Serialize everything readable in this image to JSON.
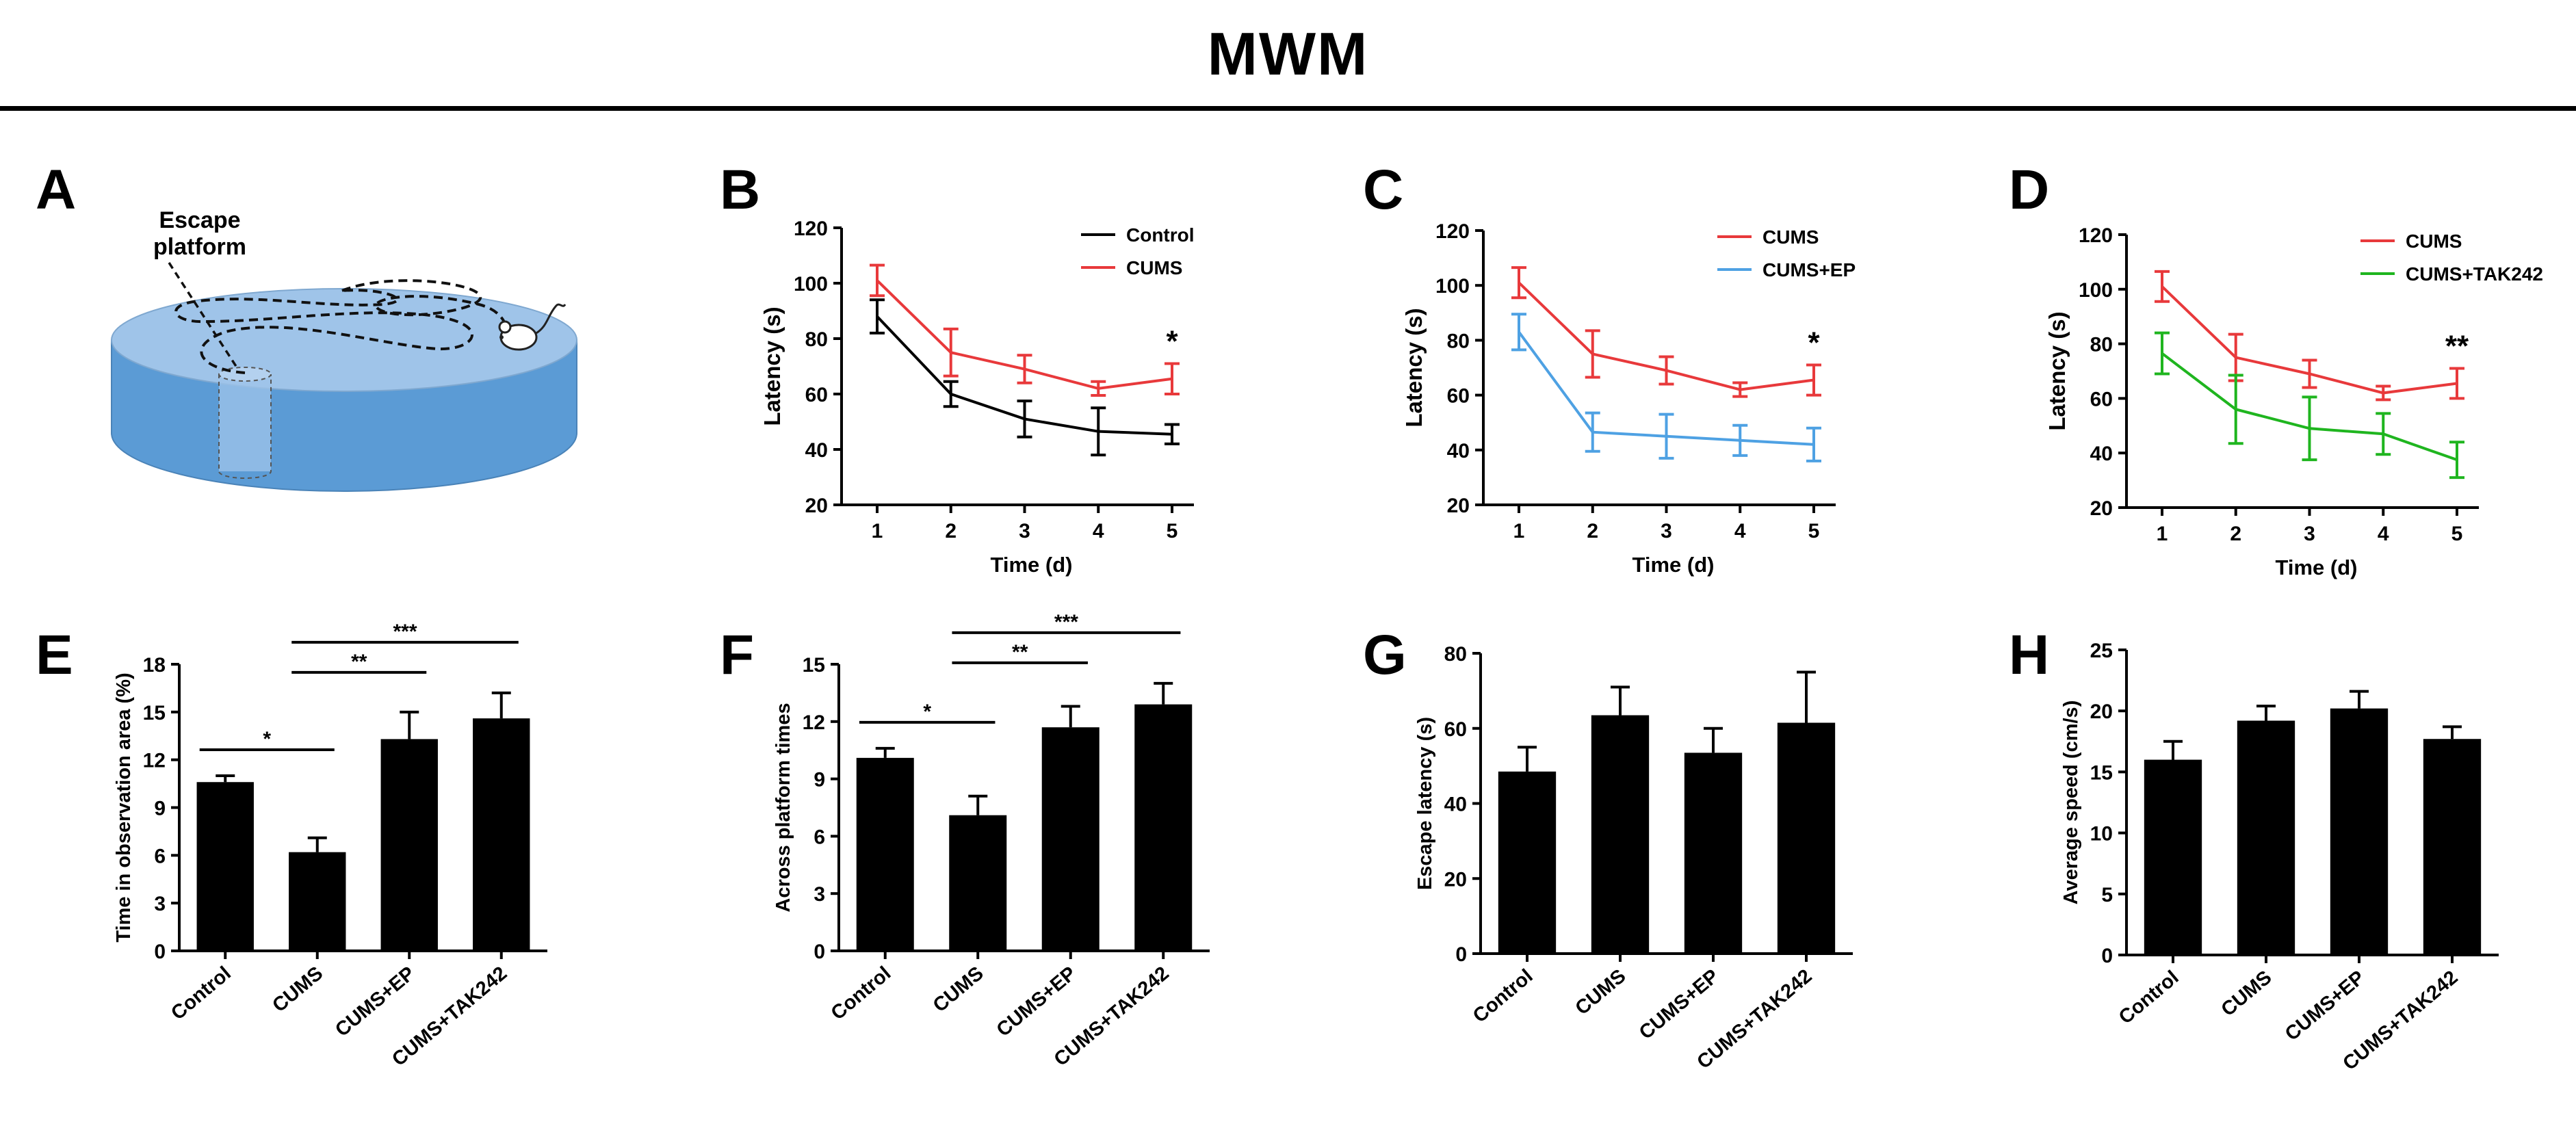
{
  "figure": {
    "title": "MWM"
  },
  "colors": {
    "black": "#000000",
    "red": "#e8393b",
    "blue": "#4ea1e3",
    "green": "#1fb51f",
    "tank_top": "#9fc4e9",
    "tank_side": "#5b9bd5"
  },
  "panel_a": {
    "letter": "A",
    "label_line1": "Escape",
    "label_line2": "platform"
  },
  "chart_data": [
    {
      "panel": "B",
      "type": "line",
      "xlabel": "Time (d)",
      "ylabel": "Latency (s)",
      "x": [
        1,
        2,
        3,
        4,
        5
      ],
      "ylim": [
        20,
        120
      ],
      "yticks": [
        20,
        40,
        60,
        80,
        100,
        120
      ],
      "legend_position": "top-right",
      "series": [
        {
          "name": "Control",
          "color": "#000000",
          "values": [
            88,
            60,
            51,
            46.5,
            45.5
          ],
          "errors": [
            6,
            4.5,
            6.5,
            8.5,
            3.5
          ]
        },
        {
          "name": "CUMS",
          "color": "#e8393b",
          "values": [
            101,
            75,
            69,
            62,
            65.5
          ],
          "errors": [
            5.5,
            8.5,
            5,
            2.5,
            5.5
          ]
        }
      ],
      "annotations": [
        {
          "x": 5,
          "text": "*"
        }
      ]
    },
    {
      "panel": "C",
      "type": "line",
      "xlabel": "Time (d)",
      "ylabel": "Latency (s)",
      "x": [
        1,
        2,
        3,
        4,
        5
      ],
      "ylim": [
        20,
        120
      ],
      "yticks": [
        20,
        40,
        60,
        80,
        100,
        120
      ],
      "legend_position": "top-right",
      "series": [
        {
          "name": "CUMS",
          "color": "#e8393b",
          "values": [
            101,
            75,
            69,
            62,
            65.5
          ],
          "errors": [
            5.5,
            8.5,
            5,
            2.5,
            5.5
          ]
        },
        {
          "name": "CUMS+EP",
          "color": "#4ea1e3",
          "values": [
            83,
            46.5,
            45,
            43.5,
            42
          ],
          "errors": [
            6.5,
            7,
            8,
            5.5,
            6
          ]
        }
      ],
      "annotations": [
        {
          "x": 5,
          "text": "*"
        }
      ]
    },
    {
      "panel": "D",
      "type": "line",
      "xlabel": "Time (d)",
      "ylabel": "Latency (s)",
      "x": [
        1,
        2,
        3,
        4,
        5
      ],
      "ylim": [
        20,
        120
      ],
      "yticks": [
        20,
        40,
        60,
        80,
        100,
        120
      ],
      "legend_position": "top-right",
      "series": [
        {
          "name": "CUMS",
          "color": "#e8393b",
          "values": [
            101,
            75,
            69,
            62,
            65.5
          ],
          "errors": [
            5.5,
            8.5,
            5,
            2.5,
            5.5
          ]
        },
        {
          "name": "CUMS+TAK242",
          "color": "#1fb51f",
          "values": [
            76.5,
            56,
            49,
            47,
            37.5
          ],
          "errors": [
            7.5,
            12.5,
            11.5,
            7.5,
            6.5
          ]
        }
      ],
      "annotations": [
        {
          "x": 5,
          "text": "**"
        }
      ]
    },
    {
      "panel": "E",
      "type": "bar",
      "ylabel": "Time in observation area (%)",
      "categories": [
        "Control",
        "CUMS",
        "CUMS+EP",
        "CUMS+TAK242"
      ],
      "values": [
        10.6,
        6.2,
        13.3,
        14.6
      ],
      "errors": [
        0.4,
        0.9,
        1.7,
        1.6
      ],
      "ylim": [
        0,
        18
      ],
      "yticks": [
        0,
        3,
        6,
        9,
        12,
        15,
        18
      ],
      "significance": [
        {
          "from": 0,
          "to": 1,
          "text": "*"
        },
        {
          "from": 1,
          "to": 2,
          "text": "**"
        },
        {
          "from": 1,
          "to": 3,
          "text": "***"
        }
      ]
    },
    {
      "panel": "F",
      "type": "bar",
      "ylabel": "Across platform times",
      "categories": [
        "Control",
        "CUMS",
        "CUMS+EP",
        "CUMS+TAK242"
      ],
      "values": [
        10.1,
        7.1,
        11.7,
        12.9
      ],
      "errors": [
        0.5,
        1.0,
        1.1,
        1.1
      ],
      "ylim": [
        0,
        15
      ],
      "yticks": [
        0,
        3,
        6,
        9,
        12,
        15
      ],
      "significance": [
        {
          "from": 0,
          "to": 1,
          "text": "*"
        },
        {
          "from": 1,
          "to": 2,
          "text": "**"
        },
        {
          "from": 1,
          "to": 3,
          "text": "***"
        }
      ]
    },
    {
      "panel": "G",
      "type": "bar",
      "ylabel": "Escape latency (s)",
      "categories": [
        "Control",
        "CUMS",
        "CUMS+EP",
        "CUMS+TAK242"
      ],
      "values": [
        48.5,
        63.5,
        53.5,
        61.5
      ],
      "errors": [
        6.5,
        7.5,
        6.5,
        13.5
      ],
      "ylim": [
        0,
        80
      ],
      "yticks": [
        0,
        20,
        40,
        60,
        80
      ],
      "significance": []
    },
    {
      "panel": "H",
      "type": "bar",
      "ylabel": "Average speed (cm/s)",
      "categories": [
        "Control",
        "CUMS",
        "CUMS+EP",
        "CUMS+TAK242"
      ],
      "values": [
        16.0,
        19.2,
        20.2,
        17.7
      ],
      "errors": [
        1.5,
        1.2,
        1.4,
        1.0
      ],
      "ylim": [
        0,
        25
      ],
      "yticks": [
        0,
        5,
        10,
        15,
        20,
        25
      ],
      "significance": []
    }
  ]
}
